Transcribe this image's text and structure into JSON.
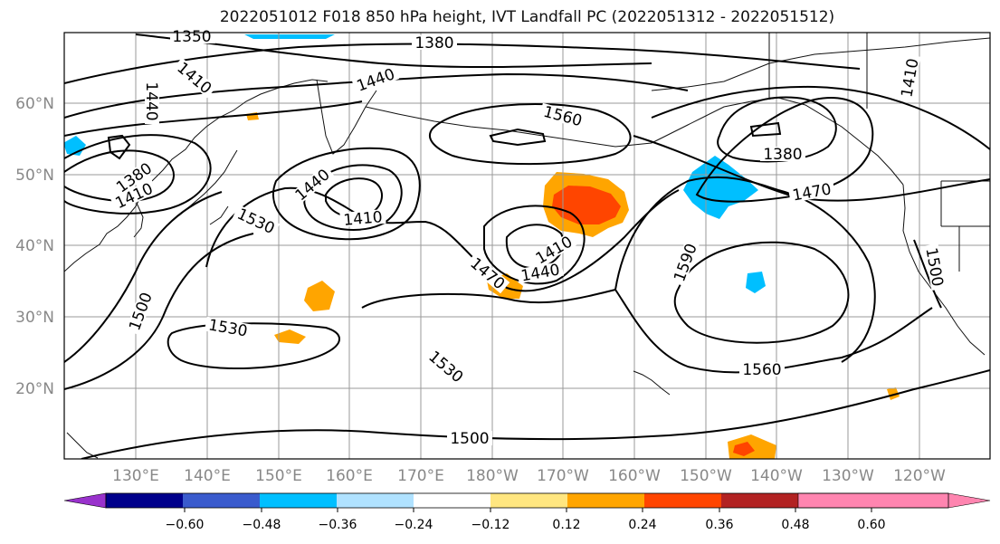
{
  "title": "2022051012 F018 850 hPa height, IVT Landfall PC (2022051312 - 2022051512)",
  "map": {
    "lon_ticks": [
      "130°E",
      "140°E",
      "150°E",
      "160°E",
      "170°E",
      "180°W",
      "170°W",
      "160°W",
      "150°W",
      "140°W",
      "130°W",
      "120°W"
    ],
    "lat_ticks": [
      "60°N",
      "50°N",
      "40°N",
      "30°N",
      "20°N"
    ],
    "contour_labels": [
      {
        "text": "1350"
      },
      {
        "text": "1380"
      },
      {
        "text": "1410"
      },
      {
        "text": "1440"
      },
      {
        "text": "1440"
      },
      {
        "text": "1560"
      },
      {
        "text": "1380"
      },
      {
        "text": "1410"
      },
      {
        "text": "1380"
      },
      {
        "text": "1410"
      },
      {
        "text": "1440"
      },
      {
        "text": "1410"
      },
      {
        "text": "1470"
      },
      {
        "text": "1530"
      },
      {
        "text": "1410"
      },
      {
        "text": "1440"
      },
      {
        "text": "1470"
      },
      {
        "text": "1590"
      },
      {
        "text": "1500"
      },
      {
        "text": "1500"
      },
      {
        "text": "1530"
      },
      {
        "text": "1530"
      },
      {
        "text": "1560"
      },
      {
        "text": "1500"
      }
    ]
  },
  "colorbar": {
    "colors": [
      "#9932cc",
      "#00008b",
      "#3a5bcd",
      "#00bfff",
      "#b0e2ff",
      "#ffffff",
      "#ffe680",
      "#ffa500",
      "#ff4500",
      "#b22222",
      "#ff85b0"
    ],
    "tick_labels": [
      "−0.60",
      "−0.48",
      "−0.36",
      "−0.24",
      "−0.12",
      "0.12",
      "0.24",
      "0.36",
      "0.48",
      "0.60"
    ]
  }
}
